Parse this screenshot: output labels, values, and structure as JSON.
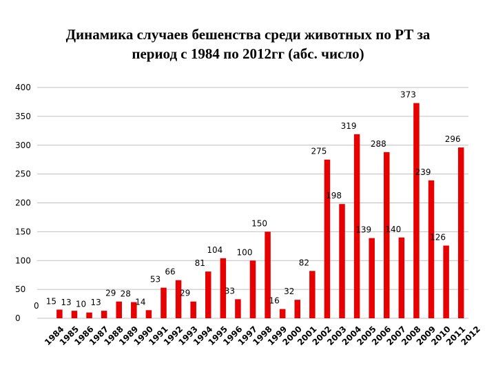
{
  "chart_data": {
    "type": "bar",
    "title_line1": "Динамика случаев бешенства среди животных по РТ за",
    "title_line2": "период с 1984 по 2012гг (абс. число)",
    "xlabel": "",
    "ylabel": "",
    "ylim": [
      0,
      400
    ],
    "yticks": [
      0,
      50,
      100,
      150,
      200,
      250,
      300,
      350,
      400
    ],
    "ytick_labels": [
      "0",
      "50",
      "100",
      "150",
      "200",
      "250",
      "300",
      "350",
      "400"
    ],
    "grid": true,
    "legend": "none",
    "bar_color": "#e60000",
    "categories": [
      "1984",
      "1985",
      "1986",
      "1987",
      "1988",
      "1989",
      "1990",
      "1991",
      "1992",
      "1993",
      "1994",
      "1995",
      "1996",
      "1997",
      "1998",
      "1999",
      "2000",
      "2001",
      "2002",
      "2003",
      "2004",
      "2005",
      "2006",
      "2007",
      "2008",
      "2009",
      "2010",
      "2011",
      "2012"
    ],
    "values": [
      0,
      15,
      13,
      10,
      13,
      29,
      28,
      14,
      53,
      66,
      29,
      81,
      104,
      33,
      100,
      150,
      16,
      32,
      82,
      275,
      198,
      319,
      139,
      288,
      140,
      373,
      239,
      126,
      296
    ],
    "value_labels": [
      "0",
      "15",
      "13",
      "10",
      "13",
      "29",
      "28",
      "14",
      "53",
      "66",
      "29",
      "81",
      "104",
      "33",
      "100",
      "150",
      "16",
      "32",
      "82",
      "275",
      "198",
      "319",
      "139",
      "288",
      "140",
      "373",
      "239",
      "126",
      "296"
    ]
  }
}
